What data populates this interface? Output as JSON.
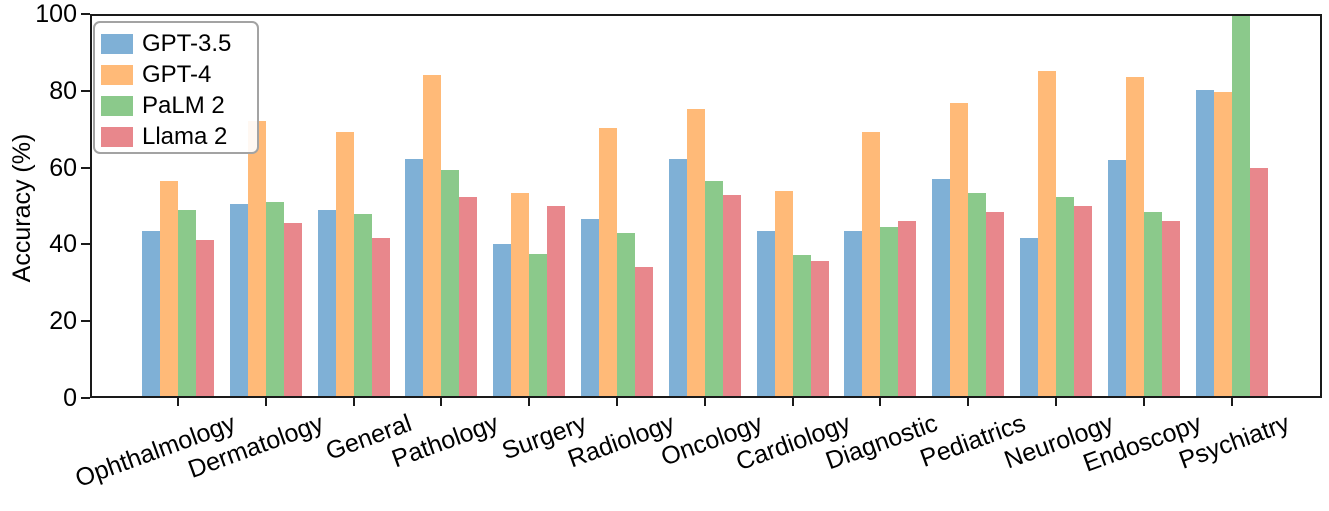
{
  "figure": {
    "background": "#ffffff",
    "frame_color": "#1a1a1a",
    "text_color": "#000000"
  },
  "chart_data": {
    "type": "bar",
    "title": "",
    "xlabel": "",
    "ylabel": "Accuracy (%)",
    "ylim": [
      0,
      100
    ],
    "yticks": [
      0,
      20,
      40,
      60,
      80,
      100
    ],
    "grid": false,
    "legend_position": "upper left",
    "categories": [
      "Ophthalmology",
      "Dermatology",
      "General",
      "Pathology",
      "Surgery",
      "Radiology",
      "Oncology",
      "Cardiology",
      "Diagnostic",
      "Pediatrics",
      "Neurology",
      "Endoscopy",
      "Psychiatry"
    ],
    "series": [
      {
        "name": "GPT-3.5",
        "color": "#7FB0D6",
        "values": [
          43.5,
          50.5,
          49.0,
          62.5,
          40.0,
          46.5,
          62.5,
          43.5,
          43.5,
          57.0,
          41.5,
          62.0,
          80.5
        ]
      },
      {
        "name": "GPT-4",
        "color": "#FFBA78",
        "values": [
          56.5,
          72.5,
          69.5,
          84.5,
          53.5,
          70.5,
          75.5,
          54.0,
          69.5,
          77.0,
          85.5,
          84.0,
          80.0
        ]
      },
      {
        "name": "PaLM 2",
        "color": "#8BC98B",
        "values": [
          49.0,
          51.0,
          48.0,
          59.5,
          37.5,
          43.0,
          56.5,
          37.0,
          44.5,
          53.5,
          52.5,
          48.5,
          100.0
        ]
      },
      {
        "name": "Llama 2",
        "color": "#E8878C",
        "values": [
          41.0,
          45.5,
          41.5,
          52.5,
          50.0,
          34.0,
          53.0,
          35.5,
          46.0,
          48.5,
          50.0,
          46.0,
          60.0
        ]
      }
    ]
  }
}
